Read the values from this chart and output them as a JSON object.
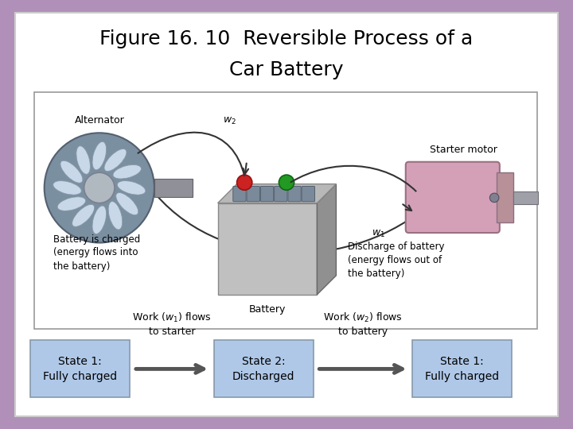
{
  "title_line1": "Figure 16. 10  Reversible Process of a",
  "title_line2": "Car Battery",
  "title_fontsize": 18,
  "title_color": "#000000",
  "bg_outer": "#b090b8",
  "bg_inner": "#ffffff",
  "box_color": "#b0c8e8",
  "box_edge": "#8899aa",
  "state1_label": "State 1:\nFully charged",
  "state2_label": "State 2:\nDischarged",
  "state1b_label": "State 1:\nFully charged",
  "arrow1_text": "Work (ω₁) flows\nto starter",
  "arrow2_text": "Work (ω₂) flows\nto battery",
  "arrow_color": "#555555",
  "label_fontsize": 10,
  "arrow_label_fontsize": 9,
  "diagram_border": "#999999",
  "diagram_bg": "#ffffff",
  "alt_label": "Alternator",
  "start_label": "Starter motor",
  "batt_label": "Battery",
  "charged_text": "Battery is charged\n(energy flows into\nthe battery)",
  "discharge_text": "Discharge of battery\n(energy flows out of\nthe battery)",
  "w1_label": "w₁",
  "w2_label": "w₂"
}
